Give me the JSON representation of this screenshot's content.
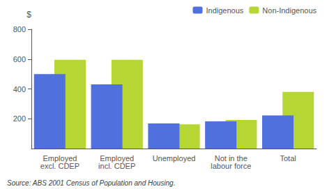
{
  "chart_data": {
    "type": "bar",
    "categories": [
      "Employed\nexcl. CDEP",
      "Employed\nincl. CDEP",
      "Unemployed",
      "Not in the\nlabour force",
      "Total"
    ],
    "series": [
      {
        "name": "Indigenous",
        "values": [
          500,
          430,
          168,
          182,
          222
        ]
      },
      {
        "name": "Non-Indigenous",
        "values": [
          595,
          595,
          162,
          192,
          380
        ]
      }
    ],
    "ylabel": "$",
    "ylim": [
      0,
      800
    ],
    "yticks": [
      200,
      400,
      600,
      800
    ],
    "grid": false,
    "legend": "upper right",
    "annotations": [
      "Source: ABS 2001 Census of Population and Housing."
    ]
  }
}
